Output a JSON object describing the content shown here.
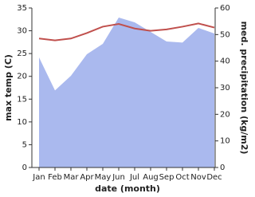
{
  "chart_data": {
    "type": "area-line",
    "x_label": "date (month)",
    "y_label": "max temp (C)",
    "y2_label": "med. precipitation (kg/m2)",
    "categories": [
      "Jan",
      "Feb",
      "Mar",
      "Apr",
      "May",
      "Jun",
      "Jul",
      "Aug",
      "Sep",
      "Oct",
      "Nov",
      "Dec"
    ],
    "series": [
      {
        "name": "max temp",
        "type": "line",
        "axis": "y",
        "color": "#c0504d",
        "values": [
          28.3,
          27.9,
          28.3,
          29.5,
          30.9,
          31.5,
          30.5,
          30.0,
          30.3,
          30.9,
          31.6,
          30.7
        ]
      },
      {
        "name": "med. precipitation",
        "type": "area",
        "axis": "y2",
        "color": "#aab9ee",
        "values": [
          41.4,
          29,
          34.5,
          42.6,
          46.5,
          56.4,
          54.6,
          51,
          47.4,
          47,
          52.5,
          50.4
        ]
      }
    ],
    "ylim": [
      0,
      35
    ],
    "yticks": [
      0,
      5,
      10,
      15,
      20,
      25,
      30,
      35
    ],
    "y2lim": [
      0,
      60
    ],
    "y2ticks": [
      0,
      10,
      20,
      30,
      40,
      50,
      60
    ]
  }
}
